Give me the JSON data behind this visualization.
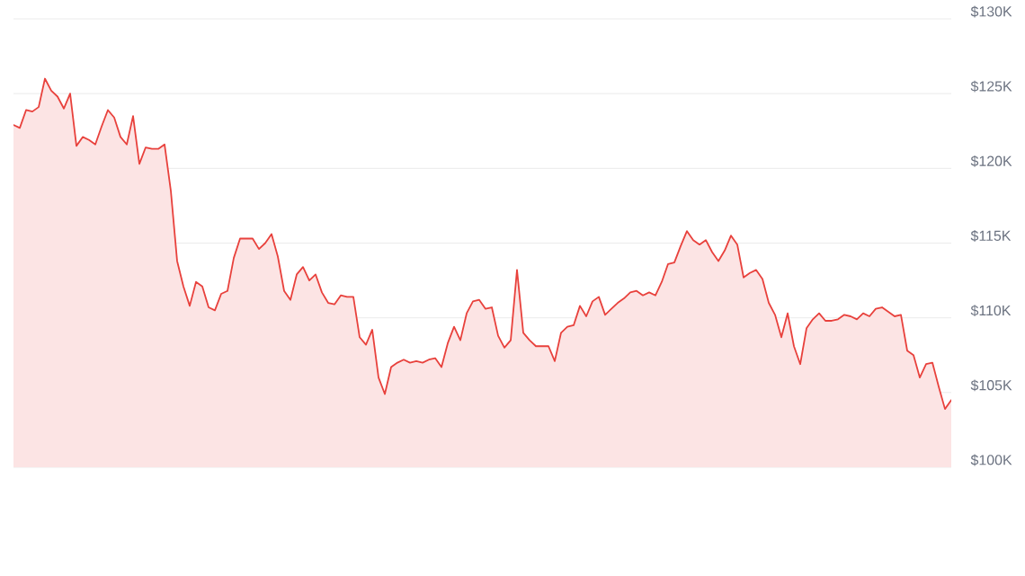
{
  "chart_data": {
    "type": "area",
    "categories": [
      null,
      null,
      null,
      null,
      null,
      null,
      null,
      null,
      null,
      null,
      null,
      null,
      null,
      null,
      null,
      null,
      null,
      null,
      null,
      null,
      null,
      null,
      null,
      null,
      null,
      null,
      null,
      null,
      null,
      null,
      null,
      null,
      null,
      null,
      null,
      null,
      null,
      null,
      null,
      null,
      null,
      null,
      null,
      null,
      null,
      null,
      null,
      null,
      null,
      null,
      null,
      null,
      null,
      null,
      null,
      null,
      null,
      null,
      null,
      null,
      null,
      null,
      null,
      null,
      null,
      null,
      null,
      null,
      null,
      null,
      null,
      null,
      null,
      null,
      null,
      null,
      null,
      null,
      null,
      null,
      null,
      null,
      null,
      null,
      null,
      null,
      null,
      null,
      null,
      null,
      null,
      null,
      null,
      null,
      null,
      null,
      null,
      null,
      null,
      null,
      null,
      null,
      null,
      null,
      null,
      null,
      null,
      null,
      null,
      null,
      null,
      null,
      null,
      null,
      null,
      null,
      null,
      null,
      null,
      null,
      null,
      null,
      null,
      null,
      null,
      null,
      null,
      null,
      null,
      null,
      null,
      null,
      null,
      null,
      null,
      null,
      null,
      null,
      null,
      null,
      null,
      null,
      null,
      null,
      null,
      null,
      null,
      null,
      null,
      null
    ],
    "values": [
      122.9,
      122.7,
      123.9,
      123.8,
      124.1,
      126.0,
      125.2,
      124.8,
      124.0,
      125.0,
      121.5,
      122.1,
      121.9,
      121.6,
      122.8,
      123.9,
      123.4,
      122.1,
      121.6,
      123.5,
      120.3,
      121.4,
      121.3,
      121.3,
      121.6,
      118.5,
      113.8,
      112.1,
      110.8,
      112.4,
      112.1,
      110.7,
      110.5,
      111.6,
      111.8,
      114.0,
      115.3,
      115.3,
      115.3,
      114.6,
      115.0,
      115.6,
      114.1,
      111.8,
      111.2,
      112.9,
      113.4,
      112.5,
      112.9,
      111.7,
      111.0,
      110.9,
      111.5,
      111.4,
      111.4,
      108.7,
      108.2,
      109.2,
      106.0,
      104.9,
      106.7,
      107.0,
      107.2,
      107.0,
      107.1,
      107.0,
      107.2,
      107.3,
      106.7,
      108.3,
      109.4,
      108.5,
      110.3,
      111.1,
      111.2,
      110.6,
      110.7,
      108.8,
      108.0,
      108.5,
      113.2,
      109.0,
      108.5,
      108.1,
      108.1,
      108.1,
      107.1,
      109.0,
      109.4,
      109.5,
      110.8,
      110.1,
      111.1,
      111.4,
      110.2,
      110.6,
      111.0,
      111.3,
      111.7,
      111.8,
      111.5,
      111.7,
      111.5,
      112.4,
      113.6,
      113.7,
      114.8,
      115.8,
      115.2,
      114.9,
      115.2,
      114.4,
      113.8,
      114.5,
      115.5,
      114.9,
      112.7,
      113.0,
      113.2,
      112.6,
      111.0,
      110.2,
      108.7,
      110.3,
      108.1,
      106.9,
      109.3,
      109.9,
      110.3,
      109.8,
      109.8,
      109.9,
      110.2,
      110.1,
      109.9,
      110.3,
      110.1,
      110.6,
      110.7,
      110.4,
      110.1,
      110.2,
      107.8,
      107.5,
      106.0,
      106.9,
      107.0,
      105.4,
      103.9,
      104.5
    ],
    "color": "#e8413c",
    "ylim": [
      100,
      130
    ],
    "yticks": [
      {
        "value": 100,
        "label": "$100K"
      },
      {
        "value": 105,
        "label": "$105K"
      },
      {
        "value": 110,
        "label": "$110K"
      },
      {
        "value": 115,
        "label": "$115K"
      },
      {
        "value": 120,
        "label": "$120K"
      },
      {
        "value": 125,
        "label": "$125K"
      },
      {
        "value": 130,
        "label": "$130K"
      }
    ],
    "grid": "y"
  }
}
